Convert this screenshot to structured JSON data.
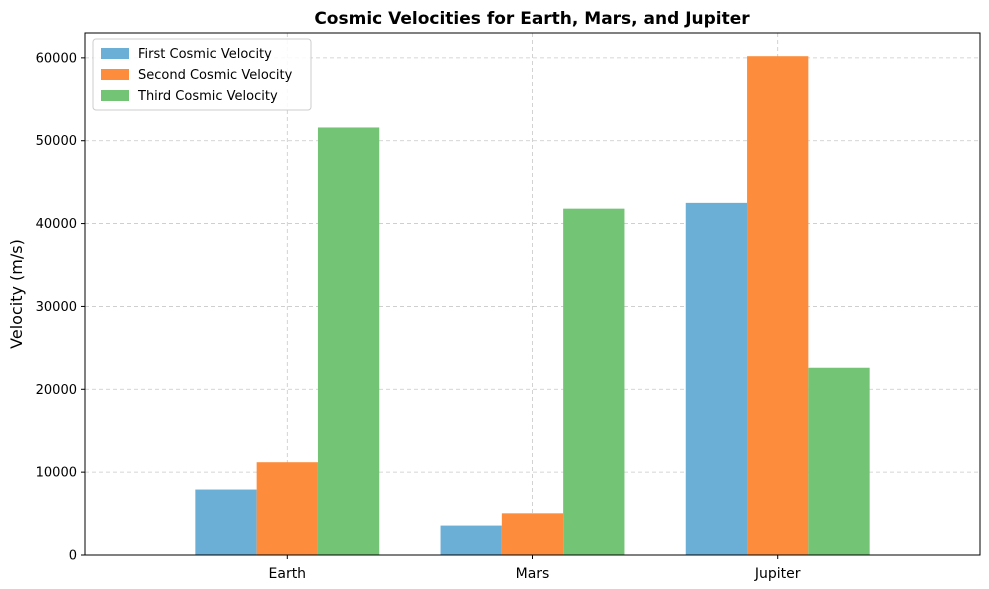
{
  "chart_data": {
    "type": "bar",
    "title": "Cosmic Velocities for Earth, Mars, and Jupiter",
    "xlabel": "",
    "ylabel": "Velocity (m/s)",
    "categories": [
      "Earth",
      "Mars",
      "Jupiter"
    ],
    "series": [
      {
        "name": "First Cosmic Velocity",
        "color": "#6baed6",
        "values": [
          7900,
          3550,
          42500
        ]
      },
      {
        "name": "Second Cosmic Velocity",
        "color": "#fd8d3c",
        "values": [
          11200,
          5030,
          60200
        ]
      },
      {
        "name": "Third Cosmic Velocity",
        "color": "#74c476",
        "values": [
          51600,
          41800,
          22600
        ]
      }
    ],
    "ylim": [
      0,
      63000
    ],
    "yticks": [
      0,
      10000,
      20000,
      30000,
      40000,
      50000,
      60000
    ],
    "ytick_labels": [
      "0",
      "10000",
      "20000",
      "30000",
      "40000",
      "50000",
      "60000"
    ],
    "grid": true,
    "legend_position": "top-left"
  }
}
